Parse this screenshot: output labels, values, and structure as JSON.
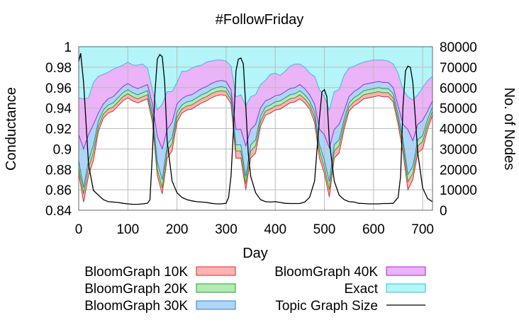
{
  "chart_data": {
    "type": "area",
    "title": "#FollowFriday",
    "xlabel": "Day",
    "ylabel": "Conductance",
    "y2label": "No. of Nodes",
    "xlim": [
      0,
      720
    ],
    "ylim": [
      0.84,
      1.0
    ],
    "y2lim": [
      0,
      80000
    ],
    "xticks": [
      "0",
      "100",
      "200",
      "300",
      "400",
      "500",
      "600",
      "700"
    ],
    "xtick_values": [
      0,
      100,
      200,
      300,
      400,
      500,
      600,
      700
    ],
    "yticks": [
      "0.84",
      "0.86",
      "0.88",
      "0.9",
      "0.92",
      "0.94",
      "0.96",
      "0.98",
      "1"
    ],
    "ytick_values": [
      0.84,
      0.86,
      0.88,
      0.9,
      0.92,
      0.94,
      0.96,
      0.98,
      1.0
    ],
    "y2ticks": [
      "0",
      "10000",
      "20000",
      "30000",
      "40000",
      "50000",
      "60000",
      "70000",
      "80000"
    ],
    "y2tick_values": [
      0,
      10000,
      20000,
      30000,
      40000,
      50000,
      60000,
      70000,
      80000
    ],
    "grid": true,
    "legend_position": "bottom",
    "x_step": 10,
    "series": [
      {
        "name": "BloomGraph 10K",
        "fill": "#ffb3b3",
        "stroke": "#e02828",
        "values": [
          0.876,
          0.848,
          0.874,
          0.889,
          0.917,
          0.93,
          0.935,
          0.937,
          0.942,
          0.947,
          0.95,
          0.947,
          0.945,
          0.947,
          0.949,
          0.926,
          0.874,
          0.856,
          0.891,
          0.898,
          0.926,
          0.935,
          0.938,
          0.939,
          0.942,
          0.945,
          0.947,
          0.95,
          0.952,
          0.953,
          0.952,
          0.944,
          0.891,
          0.891,
          0.86,
          0.891,
          0.896,
          0.922,
          0.933,
          0.935,
          0.938,
          0.939,
          0.942,
          0.945,
          0.946,
          0.949,
          0.945,
          0.939,
          0.926,
          0.891,
          0.876,
          0.853,
          0.891,
          0.896,
          0.919,
          0.937,
          0.942,
          0.945,
          0.949,
          0.95,
          0.951,
          0.952,
          0.951,
          0.951,
          0.946,
          0.924,
          0.896,
          0.86,
          0.87,
          0.896,
          0.9,
          0.919,
          0.933
        ]
      },
      {
        "name": "BloomGraph 20K",
        "fill": "#b3ebb3",
        "stroke": "#22a22a",
        "values": [
          0.882,
          0.856,
          0.882,
          0.897,
          0.922,
          0.934,
          0.939,
          0.941,
          0.946,
          0.951,
          0.954,
          0.951,
          0.949,
          0.951,
          0.953,
          0.931,
          0.88,
          0.862,
          0.898,
          0.905,
          0.931,
          0.939,
          0.942,
          0.943,
          0.946,
          0.949,
          0.951,
          0.954,
          0.956,
          0.957,
          0.956,
          0.948,
          0.898,
          0.898,
          0.866,
          0.898,
          0.903,
          0.927,
          0.937,
          0.939,
          0.942,
          0.943,
          0.946,
          0.949,
          0.95,
          0.953,
          0.949,
          0.943,
          0.931,
          0.898,
          0.882,
          0.86,
          0.898,
          0.903,
          0.924,
          0.941,
          0.946,
          0.949,
          0.953,
          0.954,
          0.955,
          0.956,
          0.955,
          0.955,
          0.95,
          0.929,
          0.903,
          0.868,
          0.876,
          0.903,
          0.907,
          0.924,
          0.937
        ]
      },
      {
        "name": "BloomGraph 30K",
        "fill": "#b0d4f8",
        "stroke": "#2a80d0",
        "values": [
          0.889,
          0.862,
          0.889,
          0.904,
          0.927,
          0.938,
          0.943,
          0.945,
          0.95,
          0.955,
          0.958,
          0.955,
          0.953,
          0.955,
          0.957,
          0.936,
          0.887,
          0.87,
          0.904,
          0.911,
          0.936,
          0.943,
          0.946,
          0.947,
          0.95,
          0.953,
          0.955,
          0.958,
          0.96,
          0.961,
          0.96,
          0.952,
          0.904,
          0.904,
          0.873,
          0.904,
          0.909,
          0.932,
          0.941,
          0.943,
          0.946,
          0.947,
          0.95,
          0.953,
          0.954,
          0.957,
          0.953,
          0.947,
          0.936,
          0.904,
          0.889,
          0.868,
          0.904,
          0.909,
          0.929,
          0.945,
          0.95,
          0.953,
          0.957,
          0.958,
          0.959,
          0.96,
          0.959,
          0.959,
          0.954,
          0.934,
          0.909,
          0.875,
          0.883,
          0.909,
          0.913,
          0.929,
          0.941
        ]
      },
      {
        "name": "BloomGraph 40K",
        "fill": "#ebb3f8",
        "stroke": "#a428d4",
        "values": [
          0.914,
          0.9,
          0.914,
          0.924,
          0.935,
          0.944,
          0.949,
          0.951,
          0.956,
          0.961,
          0.964,
          0.961,
          0.959,
          0.961,
          0.963,
          0.944,
          0.912,
          0.9,
          0.919,
          0.926,
          0.944,
          0.949,
          0.952,
          0.953,
          0.956,
          0.959,
          0.961,
          0.964,
          0.966,
          0.967,
          0.966,
          0.958,
          0.919,
          0.919,
          0.903,
          0.919,
          0.924,
          0.94,
          0.947,
          0.949,
          0.952,
          0.953,
          0.956,
          0.959,
          0.96,
          0.963,
          0.959,
          0.953,
          0.944,
          0.919,
          0.914,
          0.901,
          0.919,
          0.924,
          0.937,
          0.951,
          0.956,
          0.959,
          0.963,
          0.964,
          0.965,
          0.966,
          0.965,
          0.965,
          0.96,
          0.942,
          0.924,
          0.919,
          0.908,
          0.924,
          0.928,
          0.937,
          0.947
        ]
      },
      {
        "name": "Exact",
        "fill": "#b3f5f8",
        "stroke": "#28c8d8",
        "values": [
          0.95,
          0.949,
          0.95,
          0.965,
          0.971,
          0.973,
          0.975,
          0.978,
          0.98,
          0.982,
          0.985,
          0.982,
          0.982,
          0.983,
          0.979,
          0.958,
          0.938,
          0.944,
          0.956,
          0.956,
          0.965,
          0.976,
          0.976,
          0.979,
          0.981,
          0.982,
          0.985,
          0.986,
          0.987,
          0.987,
          0.986,
          0.981,
          0.951,
          0.953,
          0.942,
          0.951,
          0.953,
          0.963,
          0.967,
          0.973,
          0.974,
          0.972,
          0.976,
          0.981,
          0.983,
          0.983,
          0.98,
          0.974,
          0.971,
          0.958,
          0.951,
          0.938,
          0.956,
          0.958,
          0.972,
          0.979,
          0.981,
          0.983,
          0.985,
          0.986,
          0.987,
          0.987,
          0.987,
          0.986,
          0.983,
          0.974,
          0.958,
          0.951,
          0.948,
          0.953,
          0.96,
          0.967,
          0.971
        ]
      }
    ],
    "line_series": {
      "name": "Topic Graph Size",
      "axis": "right",
      "stroke": "#000000",
      "points": [
        [
          0,
          72800
        ],
        [
          4,
          76800
        ],
        [
          10,
          62500
        ],
        [
          20,
          22300
        ],
        [
          30,
          9700
        ],
        [
          40,
          7400
        ],
        [
          50,
          5200
        ],
        [
          60,
          4200
        ],
        [
          70,
          4000
        ],
        [
          80,
          3800
        ],
        [
          90,
          3400
        ],
        [
          100,
          3100
        ],
        [
          110,
          2900
        ],
        [
          120,
          2900
        ],
        [
          130,
          3100
        ],
        [
          140,
          3400
        ],
        [
          145,
          5200
        ],
        [
          150,
          28100
        ],
        [
          155,
          56700
        ],
        [
          160,
          73900
        ],
        [
          165,
          76200
        ],
        [
          170,
          75100
        ],
        [
          175,
          62500
        ],
        [
          180,
          33800
        ],
        [
          190,
          14300
        ],
        [
          200,
          8600
        ],
        [
          210,
          6300
        ],
        [
          220,
          5200
        ],
        [
          230,
          4600
        ],
        [
          240,
          4200
        ],
        [
          250,
          4000
        ],
        [
          260,
          3800
        ],
        [
          270,
          3400
        ],
        [
          280,
          3100
        ],
        [
          290,
          3100
        ],
        [
          300,
          3400
        ],
        [
          305,
          6300
        ],
        [
          310,
          16600
        ],
        [
          315,
          39500
        ],
        [
          320,
          68200
        ],
        [
          325,
          73900
        ],
        [
          330,
          74500
        ],
        [
          335,
          71600
        ],
        [
          340,
          51000
        ],
        [
          345,
          28100
        ],
        [
          350,
          16600
        ],
        [
          360,
          8600
        ],
        [
          370,
          5200
        ],
        [
          380,
          4200
        ],
        [
          390,
          4000
        ],
        [
          400,
          4200
        ],
        [
          410,
          3800
        ],
        [
          420,
          3400
        ],
        [
          430,
          3300
        ],
        [
          440,
          3300
        ],
        [
          450,
          3300
        ],
        [
          460,
          4000
        ],
        [
          470,
          6300
        ],
        [
          480,
          14300
        ],
        [
          490,
          45300
        ],
        [
          495,
          57900
        ],
        [
          500,
          59000
        ],
        [
          505,
          55600
        ],
        [
          510,
          33800
        ],
        [
          520,
          14300
        ],
        [
          530,
          7400
        ],
        [
          540,
          5200
        ],
        [
          550,
          4200
        ],
        [
          560,
          4000
        ],
        [
          570,
          3400
        ],
        [
          580,
          3300
        ],
        [
          590,
          3100
        ],
        [
          600,
          3100
        ],
        [
          610,
          3100
        ],
        [
          620,
          3300
        ],
        [
          630,
          3300
        ],
        [
          640,
          3400
        ],
        [
          650,
          6300
        ],
        [
          655,
          16600
        ],
        [
          660,
          51000
        ],
        [
          665,
          68200
        ],
        [
          670,
          70500
        ],
        [
          675,
          69900
        ],
        [
          680,
          62500
        ],
        [
          690,
          28100
        ],
        [
          700,
          10900
        ],
        [
          710,
          5700
        ],
        [
          720,
          4200
        ]
      ]
    }
  }
}
